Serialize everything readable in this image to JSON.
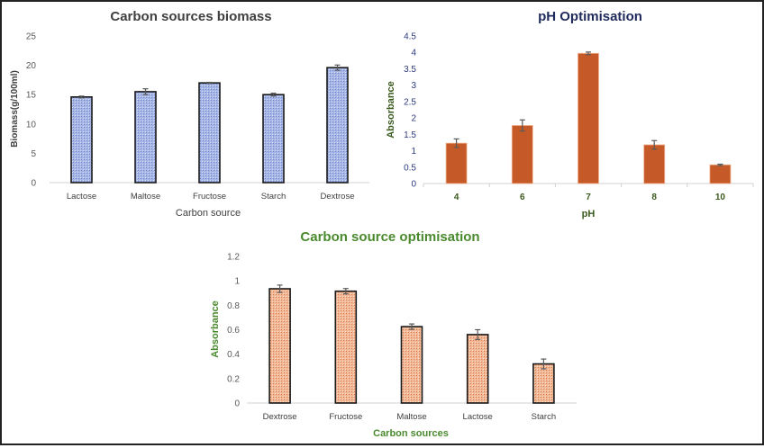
{
  "colors": {
    "biomass_fill": "#a4b5e6",
    "biomass_pattern": "#6f86cf",
    "ph_fill": "#c55a28",
    "ph_title": "#1f2a5c",
    "ph_axis_text": "#2d3a80",
    "ph_label_text": "#3a5a1e",
    "opt_fill": "#f2b896",
    "opt_pattern": "#d97b4c",
    "opt_title": "#4a8a2e",
    "grey_text": "#595959",
    "title_grey": "#404040"
  },
  "chart_data": [
    {
      "type": "bar",
      "title": "Carbon sources biomass",
      "xlabel": "Carbon source",
      "ylabel": "Biomass(g/100ml)",
      "categories": [
        "Lactose",
        "Maltose",
        "Fructose",
        "Starch",
        "Dextrose"
      ],
      "values": [
        14.6,
        15.5,
        17.0,
        15.0,
        19.6
      ],
      "errors": [
        0.15,
        0.5,
        0.1,
        0.25,
        0.45
      ],
      "ylim": [
        0,
        25
      ],
      "yticks": [
        "0",
        "5",
        "10",
        "15",
        "20",
        "25"
      ],
      "ytick_values": [
        0,
        5,
        10,
        15,
        20,
        25
      ],
      "grid": false,
      "legend": "none"
    },
    {
      "type": "bar",
      "title": "pH Optimisation",
      "xlabel": "pH",
      "ylabel": "Absorbance",
      "categories": [
        "4",
        "6",
        "7",
        "8",
        "10"
      ],
      "values": [
        1.23,
        1.77,
        3.97,
        1.18,
        0.57
      ],
      "errors": [
        0.13,
        0.17,
        0.04,
        0.13,
        0.02
      ],
      "ylim": [
        0,
        4.5
      ],
      "yticks": [
        "0",
        "0.5",
        "1",
        "1.5",
        "2",
        "2.5",
        "3",
        "3.5",
        "4",
        "4.5"
      ],
      "ytick_values": [
        0,
        0.5,
        1,
        1.5,
        2,
        2.5,
        3,
        3.5,
        4,
        4.5
      ],
      "grid": false,
      "legend": "none"
    },
    {
      "type": "bar",
      "title": "Carbon source optimisation",
      "xlabel": "Carbon sources",
      "ylabel": "Absorbance",
      "categories": [
        "Dextrose",
        "Fructose",
        "Maltose",
        "Lactose",
        "Starch"
      ],
      "values": [
        0.935,
        0.915,
        0.625,
        0.56,
        0.32
      ],
      "errors": [
        0.03,
        0.022,
        0.022,
        0.04,
        0.04
      ],
      "ylim": [
        0,
        1.2
      ],
      "yticks": [
        "0",
        "0.2",
        "0.4",
        "0.6",
        "0.8",
        "1",
        "1.2"
      ],
      "ytick_values": [
        0,
        0.2,
        0.4,
        0.6,
        0.8,
        1,
        1.2
      ],
      "grid": false,
      "legend": "none"
    }
  ]
}
